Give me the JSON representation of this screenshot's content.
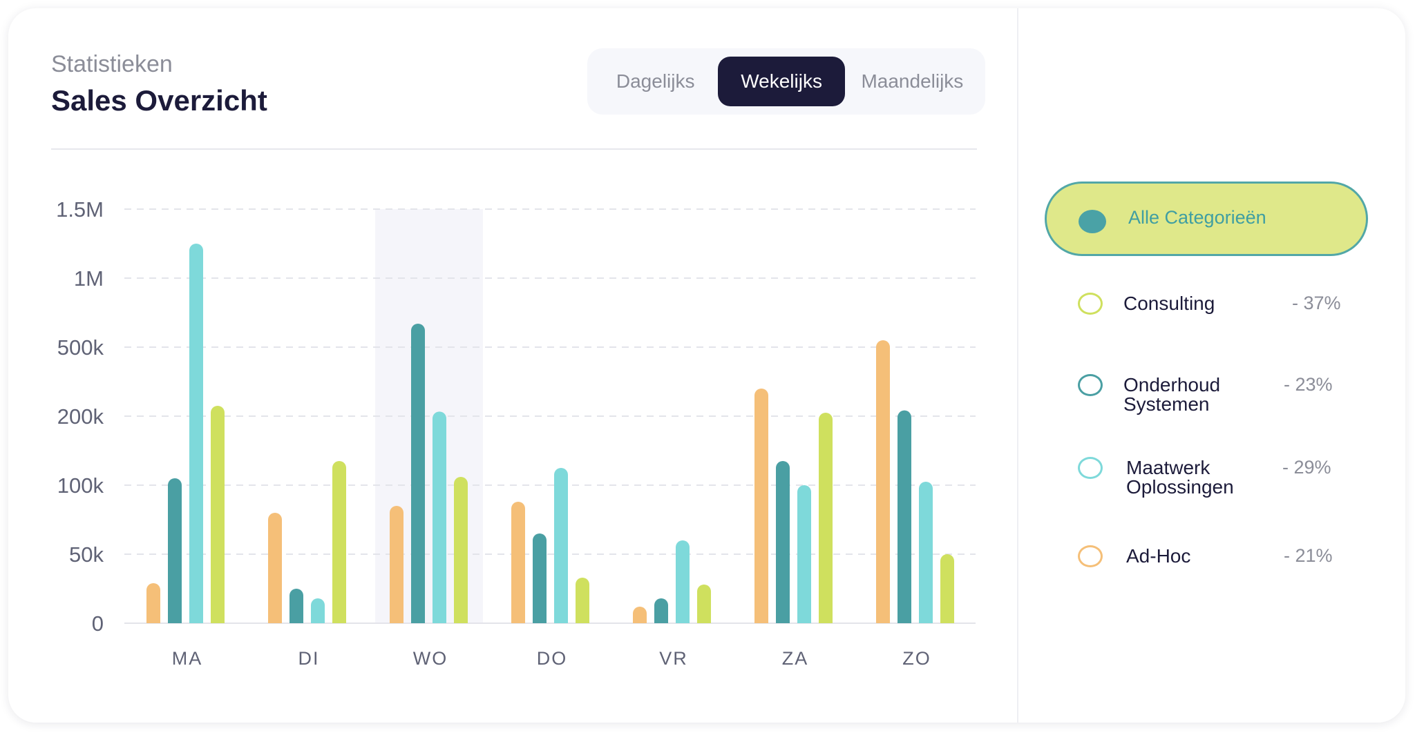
{
  "header": {
    "subtitle": "Statistieken",
    "title": "Sales Overzicht"
  },
  "tabs": [
    {
      "label": "Dagelijks",
      "active": false
    },
    {
      "label": "Wekelijks",
      "active": true
    },
    {
      "label": "Maandelijks",
      "active": false
    }
  ],
  "legend": {
    "all_label": "Alle Categorieën",
    "items": [
      {
        "name_line1": "Consulting",
        "name_line2": "",
        "percent": "- 37%",
        "color": "#cfe05e"
      },
      {
        "name_line1": "Onderhoud",
        "name_line2": "Systemen",
        "percent": "- 23%",
        "color": "#4a9fa3"
      },
      {
        "name_line1": "Maatwerk",
        "name_line2": "Oplossingen",
        "percent": "- 29%",
        "color": "#7ed9da"
      },
      {
        "name_line1": "Ad-Hoc",
        "name_line2": "",
        "percent": "- 21%",
        "color": "#f5bf78"
      }
    ]
  },
  "colors": {
    "ad_hoc": "#f5bf78",
    "onderhoud": "#4a9fa3",
    "maatwerk": "#7ed9da",
    "consulting": "#cfe05e",
    "highlight": "#f5f5fa",
    "accent_dark": "#1c1b3a"
  },
  "chart_data": {
    "type": "bar",
    "categories": [
      "MA",
      "DI",
      "WO",
      "DO",
      "VR",
      "ZA",
      "ZO"
    ],
    "highlighted_category": "WO",
    "y_ticks": [
      {
        "label": "0",
        "value": 0
      },
      {
        "label": "50k",
        "value": 50000
      },
      {
        "label": "100k",
        "value": 100000
      },
      {
        "label": "200k",
        "value": 200000
      },
      {
        "label": "500k",
        "value": 500000
      },
      {
        "label": "1M",
        "value": 1000000
      },
      {
        "label": "1.5M",
        "value": 1500000
      }
    ],
    "grid": true,
    "series": [
      {
        "name": "Ad-Hoc",
        "values": [
          29000,
          80000,
          85000,
          88000,
          12000,
          320000,
          550000
        ]
      },
      {
        "name": "Onderhoud Systemen",
        "values": [
          110000,
          25000,
          670000,
          65000,
          18000,
          135000,
          225000
        ]
      },
      {
        "name": "Maatwerk Oplossingen",
        "values": [
          1250000,
          18000,
          220000,
          125000,
          60000,
          100000,
          105000
        ]
      },
      {
        "name": "Consulting",
        "values": [
          245000,
          135000,
          112000,
          33000,
          28000,
          215000,
          50000
        ]
      }
    ]
  }
}
